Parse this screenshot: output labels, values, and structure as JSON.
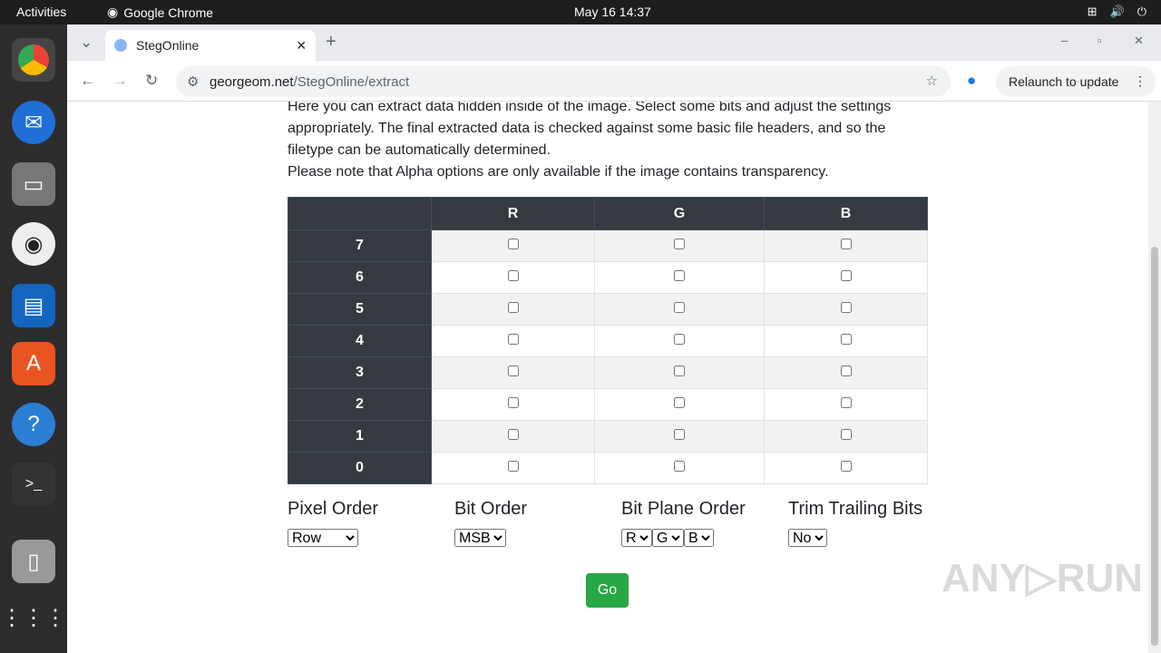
{
  "system": {
    "activities": "Activities",
    "app_name": "Google Chrome",
    "clock": "May 16  14:37"
  },
  "browser": {
    "tab_title": "StegOnline",
    "url_host": "georgeom.net",
    "url_path": "/StegOnline/extract",
    "relaunch": "Relaunch to update"
  },
  "page": {
    "intro": "Here you can extract data hidden inside of the image. Select some bits and adjust the settings appropriately. The final extracted data is checked against some basic file headers, and so the filetype can be automatically determined.",
    "note": "Please note that Alpha options are only available if the image contains transparency.",
    "table": {
      "columns": [
        "",
        "R",
        "G",
        "B"
      ],
      "rows": [
        "7",
        "6",
        "5",
        "4",
        "3",
        "2",
        "1",
        "0"
      ]
    },
    "options": {
      "pixel_order": {
        "label": "Pixel Order",
        "value": "Row"
      },
      "bit_order": {
        "label": "Bit Order",
        "value": "MSB"
      },
      "bit_plane_order": {
        "label": "Bit Plane Order",
        "values": [
          "R",
          "G",
          "B"
        ]
      },
      "trim": {
        "label": "Trim Trailing Bits",
        "value": "No"
      }
    },
    "go": "Go"
  },
  "watermark": "ANY RUN"
}
